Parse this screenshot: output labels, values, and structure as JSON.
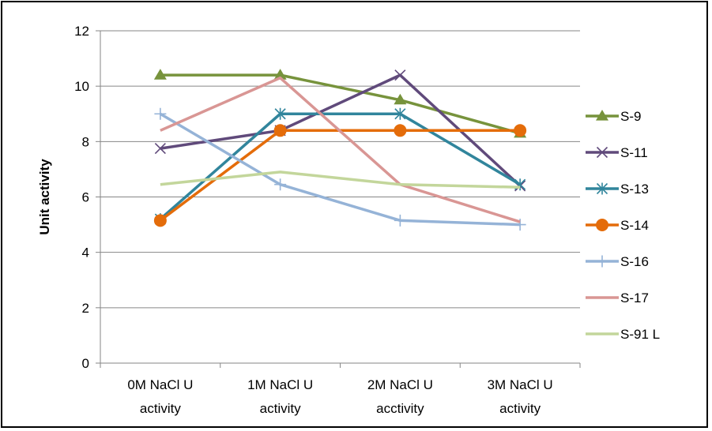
{
  "chart_data": {
    "type": "line",
    "title": "",
    "xlabel": "",
    "ylabel": "Unit activity",
    "ylim": [
      0,
      12
    ],
    "yticks": [
      0,
      2,
      4,
      6,
      8,
      10,
      12
    ],
    "grid": "horizontal",
    "legend_position": "right",
    "categories": [
      [
        "0M NaCl  U",
        "activity"
      ],
      [
        "1M NaCl  U",
        "activity"
      ],
      [
        "2M NaCl  U",
        "acctivity"
      ],
      [
        "3M NaCl U",
        "activity"
      ]
    ],
    "series": [
      {
        "name": "S-9",
        "color": "#77933C",
        "marker": "triangle",
        "values": [
          10.4,
          10.4,
          9.5,
          8.3
        ]
      },
      {
        "name": "S-11",
        "color": "#604A7B",
        "marker": "x",
        "values": [
          7.75,
          8.4,
          10.4,
          6.4
        ]
      },
      {
        "name": "S-13",
        "color": "#31859C",
        "marker": "asterisk",
        "values": [
          5.2,
          9.0,
          9.0,
          6.45
        ]
      },
      {
        "name": "S-14",
        "color": "#E46C0A",
        "marker": "circle",
        "values": [
          5.15,
          8.4,
          8.4,
          8.4
        ]
      },
      {
        "name": "S-16",
        "color": "#95B3D7",
        "marker": "plus",
        "values": [
          9.0,
          6.45,
          5.15,
          5.0
        ]
      },
      {
        "name": "S-17",
        "color": "#D99694",
        "marker": "none",
        "values": [
          8.4,
          10.3,
          6.45,
          5.1
        ]
      },
      {
        "name": "S-91 L",
        "color": "#C3D69B",
        "marker": "none",
        "values": [
          6.45,
          6.9,
          6.45,
          6.35
        ]
      }
    ]
  }
}
